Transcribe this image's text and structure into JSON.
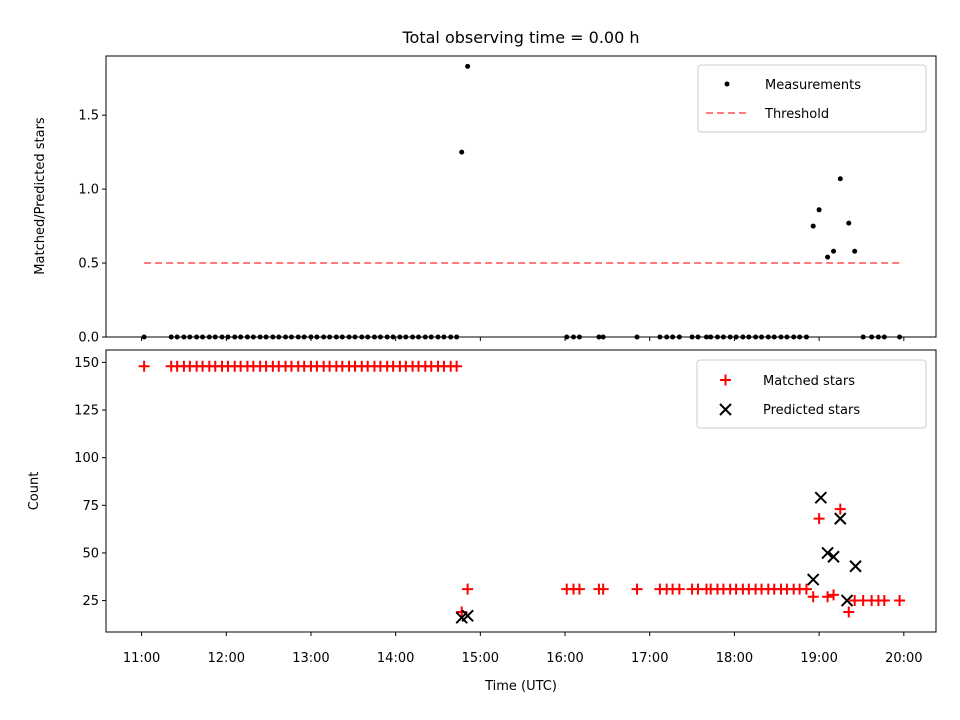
{
  "chart_data": [
    {
      "type": "scatter",
      "title": "Total observing time = 0.00 h",
      "xlabel": "",
      "ylabel": "Matched/Predicted stars",
      "xlim": [
        10.58,
        20.38
      ],
      "ylim": [
        0.0,
        1.9
      ],
      "yticks": [
        0.0,
        0.5,
        1.0,
        1.5
      ],
      "yticklabels": [
        "0.0",
        "0.5",
        "1.0",
        "1.5"
      ],
      "legend": {
        "position": "top-right",
        "entries": [
          "Measurements",
          "Threshold"
        ]
      },
      "threshold": {
        "name": "Threshold",
        "y": 0.5,
        "x_start": 11.03,
        "x_end": 19.97,
        "color": "#ff7b7b"
      },
      "series": [
        {
          "name": "Measurements",
          "marker": "dot",
          "color": "#000000",
          "points": [
            [
              11.03,
              0.0
            ],
            [
              11.35,
              0.0
            ],
            [
              11.42,
              0.0
            ],
            [
              11.5,
              0.0
            ],
            [
              11.57,
              0.0
            ],
            [
              11.65,
              0.0
            ],
            [
              11.72,
              0.0
            ],
            [
              11.8,
              0.0
            ],
            [
              11.87,
              0.0
            ],
            [
              11.95,
              0.0
            ],
            [
              12.02,
              0.0
            ],
            [
              12.1,
              0.0
            ],
            [
              12.17,
              0.0
            ],
            [
              12.25,
              0.0
            ],
            [
              12.32,
              0.0
            ],
            [
              12.4,
              0.0
            ],
            [
              12.47,
              0.0
            ],
            [
              12.55,
              0.0
            ],
            [
              12.62,
              0.0
            ],
            [
              12.7,
              0.0
            ],
            [
              12.77,
              0.0
            ],
            [
              12.85,
              0.0
            ],
            [
              12.92,
              0.0
            ],
            [
              13.0,
              0.0
            ],
            [
              13.07,
              0.0
            ],
            [
              13.15,
              0.0
            ],
            [
              13.22,
              0.0
            ],
            [
              13.3,
              0.0
            ],
            [
              13.37,
              0.0
            ],
            [
              13.45,
              0.0
            ],
            [
              13.52,
              0.0
            ],
            [
              13.6,
              0.0
            ],
            [
              13.67,
              0.0
            ],
            [
              13.75,
              0.0
            ],
            [
              13.82,
              0.0
            ],
            [
              13.9,
              0.0
            ],
            [
              13.97,
              0.0
            ],
            [
              14.05,
              0.0
            ],
            [
              14.12,
              0.0
            ],
            [
              14.2,
              0.0
            ],
            [
              14.27,
              0.0
            ],
            [
              14.35,
              0.0
            ],
            [
              14.42,
              0.0
            ],
            [
              14.5,
              0.0
            ],
            [
              14.57,
              0.0
            ],
            [
              14.65,
              0.0
            ],
            [
              14.72,
              0.0
            ],
            [
              14.78,
              1.25
            ],
            [
              14.85,
              1.83
            ],
            [
              16.02,
              0.0
            ],
            [
              16.1,
              0.0
            ],
            [
              16.17,
              0.0
            ],
            [
              16.4,
              0.0
            ],
            [
              16.45,
              0.0
            ],
            [
              16.85,
              0.0
            ],
            [
              17.12,
              0.0
            ],
            [
              17.2,
              0.0
            ],
            [
              17.27,
              0.0
            ],
            [
              17.35,
              0.0
            ],
            [
              17.5,
              0.0
            ],
            [
              17.57,
              0.0
            ],
            [
              17.67,
              0.0
            ],
            [
              17.72,
              0.0
            ],
            [
              17.8,
              0.0
            ],
            [
              17.87,
              0.0
            ],
            [
              17.95,
              0.0
            ],
            [
              18.02,
              0.0
            ],
            [
              18.1,
              0.0
            ],
            [
              18.17,
              0.0
            ],
            [
              18.25,
              0.0
            ],
            [
              18.32,
              0.0
            ],
            [
              18.4,
              0.0
            ],
            [
              18.47,
              0.0
            ],
            [
              18.55,
              0.0
            ],
            [
              18.62,
              0.0
            ],
            [
              18.7,
              0.0
            ],
            [
              18.77,
              0.0
            ],
            [
              18.85,
              0.0
            ],
            [
              18.93,
              0.75
            ],
            [
              19.0,
              0.86
            ],
            [
              19.1,
              0.54
            ],
            [
              19.17,
              0.58
            ],
            [
              19.25,
              1.07
            ],
            [
              19.35,
              0.77
            ],
            [
              19.42,
              0.58
            ],
            [
              19.52,
              0.0
            ],
            [
              19.62,
              0.0
            ],
            [
              19.7,
              0.0
            ],
            [
              19.77,
              0.0
            ],
            [
              19.95,
              0.0
            ]
          ]
        }
      ]
    },
    {
      "type": "scatter",
      "title": "",
      "xlabel": "Time (UTC)",
      "ylabel": "Count",
      "xlim": [
        10.58,
        20.38
      ],
      "ylim": [
        8.5,
        156.5
      ],
      "xticks": [
        11,
        12,
        13,
        14,
        15,
        16,
        17,
        18,
        19,
        20
      ],
      "xticklabels": [
        "11:00",
        "12:00",
        "13:00",
        "14:00",
        "15:00",
        "16:00",
        "17:00",
        "18:00",
        "19:00",
        "20:00"
      ],
      "yticks": [
        25,
        50,
        75,
        100,
        125,
        150
      ],
      "yticklabels": [
        "25",
        "50",
        "75",
        "100",
        "125",
        "150"
      ],
      "legend": {
        "position": "top-right",
        "entries": [
          "Matched stars",
          "Predicted stars"
        ]
      },
      "series": [
        {
          "name": "Matched stars",
          "marker": "plus",
          "color": "#ff0000",
          "points": [
            [
              11.03,
              148
            ],
            [
              11.35,
              148
            ],
            [
              11.42,
              148
            ],
            [
              11.5,
              148
            ],
            [
              11.57,
              148
            ],
            [
              11.65,
              148
            ],
            [
              11.72,
              148
            ],
            [
              11.8,
              148
            ],
            [
              11.87,
              148
            ],
            [
              11.95,
              148
            ],
            [
              12.02,
              148
            ],
            [
              12.1,
              148
            ],
            [
              12.17,
              148
            ],
            [
              12.25,
              148
            ],
            [
              12.32,
              148
            ],
            [
              12.4,
              148
            ],
            [
              12.47,
              148
            ],
            [
              12.55,
              148
            ],
            [
              12.62,
              148
            ],
            [
              12.7,
              148
            ],
            [
              12.77,
              148
            ],
            [
              12.85,
              148
            ],
            [
              12.92,
              148
            ],
            [
              13.0,
              148
            ],
            [
              13.07,
              148
            ],
            [
              13.15,
              148
            ],
            [
              13.22,
              148
            ],
            [
              13.3,
              148
            ],
            [
              13.37,
              148
            ],
            [
              13.45,
              148
            ],
            [
              13.52,
              148
            ],
            [
              13.6,
              148
            ],
            [
              13.67,
              148
            ],
            [
              13.75,
              148
            ],
            [
              13.82,
              148
            ],
            [
              13.9,
              148
            ],
            [
              13.97,
              148
            ],
            [
              14.05,
              148
            ],
            [
              14.12,
              148
            ],
            [
              14.2,
              148
            ],
            [
              14.27,
              148
            ],
            [
              14.35,
              148
            ],
            [
              14.42,
              148
            ],
            [
              14.5,
              148
            ],
            [
              14.57,
              148
            ],
            [
              14.65,
              148
            ],
            [
              14.72,
              148
            ],
            [
              14.78,
              19
            ],
            [
              14.85,
              31
            ],
            [
              16.02,
              31
            ],
            [
              16.1,
              31
            ],
            [
              16.17,
              31
            ],
            [
              16.4,
              31
            ],
            [
              16.45,
              31
            ],
            [
              16.85,
              31
            ],
            [
              17.12,
              31
            ],
            [
              17.2,
              31
            ],
            [
              17.27,
              31
            ],
            [
              17.35,
              31
            ],
            [
              17.5,
              31
            ],
            [
              17.57,
              31
            ],
            [
              17.67,
              31
            ],
            [
              17.72,
              31
            ],
            [
              17.8,
              31
            ],
            [
              17.87,
              31
            ],
            [
              17.95,
              31
            ],
            [
              18.02,
              31
            ],
            [
              18.1,
              31
            ],
            [
              18.17,
              31
            ],
            [
              18.25,
              31
            ],
            [
              18.32,
              31
            ],
            [
              18.4,
              31
            ],
            [
              18.47,
              31
            ],
            [
              18.55,
              31
            ],
            [
              18.62,
              31
            ],
            [
              18.7,
              31
            ],
            [
              18.77,
              31
            ],
            [
              18.85,
              31
            ],
            [
              18.93,
              27
            ],
            [
              19.0,
              68
            ],
            [
              19.1,
              27
            ],
            [
              19.17,
              28
            ],
            [
              19.25,
              73
            ],
            [
              19.35,
              19
            ],
            [
              19.42,
              25
            ],
            [
              19.52,
              25
            ],
            [
              19.62,
              25
            ],
            [
              19.7,
              25
            ],
            [
              19.77,
              25
            ],
            [
              19.95,
              25
            ]
          ]
        },
        {
          "name": "Predicted stars",
          "marker": "x",
          "color": "#000000",
          "points": [
            [
              14.78,
              16
            ],
            [
              14.85,
              17
            ],
            [
              18.93,
              36
            ],
            [
              19.02,
              79
            ],
            [
              19.1,
              50
            ],
            [
              19.17,
              48
            ],
            [
              19.25,
              68
            ],
            [
              19.33,
              25
            ],
            [
              19.43,
              43
            ]
          ]
        }
      ]
    }
  ]
}
